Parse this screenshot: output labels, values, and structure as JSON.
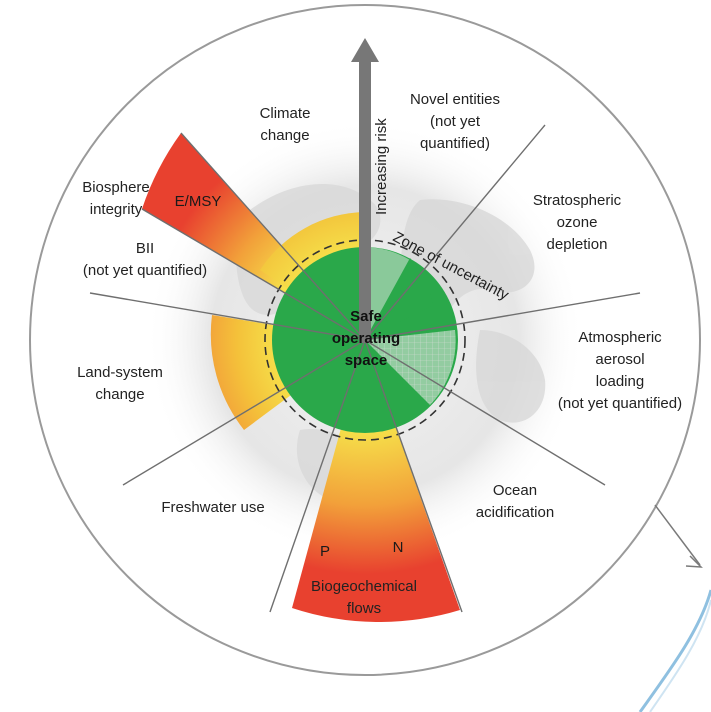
{
  "center_label": [
    "Safe",
    "operating",
    "space"
  ],
  "arrow_label": "Increasing risk",
  "zone_label": "Zone of uncertainty",
  "boundaries": [
    {
      "id": "climate",
      "lines": [
        "Climate",
        "change"
      ]
    },
    {
      "id": "novel",
      "lines": [
        "Novel entities",
        "(not yet",
        "quantified)"
      ]
    },
    {
      "id": "ozone",
      "lines": [
        "Stratospheric",
        "ozone",
        "depletion"
      ]
    },
    {
      "id": "aerosol",
      "lines": [
        "Atmospheric",
        "aerosol",
        "loading",
        "(not yet quantified)"
      ]
    },
    {
      "id": "ocean",
      "lines": [
        "Ocean",
        "acidification"
      ]
    },
    {
      "id": "biogeo",
      "lines": [
        "Biogeochemical",
        "flows"
      ]
    },
    {
      "id": "freshwater",
      "lines": [
        "Freshwater use"
      ]
    },
    {
      "id": "land",
      "lines": [
        "Land-system",
        "change"
      ]
    },
    {
      "id": "bii",
      "lines": [
        "BII",
        "(not yet quantified)"
      ]
    },
    {
      "id": "biosphere",
      "lines": [
        "Biosphere",
        "integrity"
      ]
    }
  ],
  "wedge_tags": {
    "emsy": "E/MSY",
    "p": "P",
    "n": "N"
  },
  "colors": {
    "safe": "#2aa84a",
    "yellow": "#f6e04a",
    "orange": "#f2a13a",
    "red": "#e8412f",
    "ring": "#9a9a9a",
    "line": "#6f6f6f"
  }
}
